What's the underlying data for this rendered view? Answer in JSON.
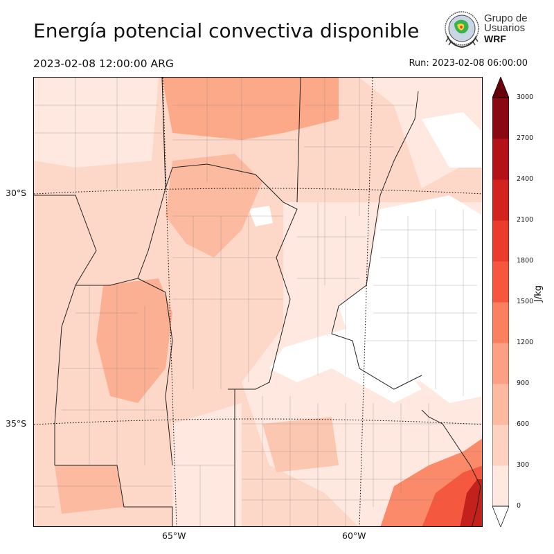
{
  "header": {
    "title": "Energía potencial convectiva disponible",
    "valid_time": "2023-02-08 12:00:00 ARG",
    "run_time": "Run: 2023-02-08 06:00:00"
  },
  "logo": {
    "line1": "Grupo de",
    "line2": "Usuarios",
    "line3": "WRF"
  },
  "map": {
    "lat_labels": [
      "30°S",
      "35°S"
    ],
    "lon_labels": [
      "65°W",
      "60°W"
    ]
  },
  "colorbar": {
    "unit": "J/kg",
    "ticks": [
      "0",
      "300",
      "600",
      "900",
      "1200",
      "1500",
      "1800",
      "2100",
      "2400",
      "2700",
      "3000"
    ],
    "colors": [
      "#fee8e0",
      "#fdd2c0",
      "#fcbba1",
      "#fc9f82",
      "#fb8060",
      "#f6563d",
      "#ea3b2c",
      "#d2231f",
      "#b31217",
      "#8a0812",
      "#67000d"
    ],
    "extend_low": "#ffffff",
    "extend_high": "#67000d"
  }
}
